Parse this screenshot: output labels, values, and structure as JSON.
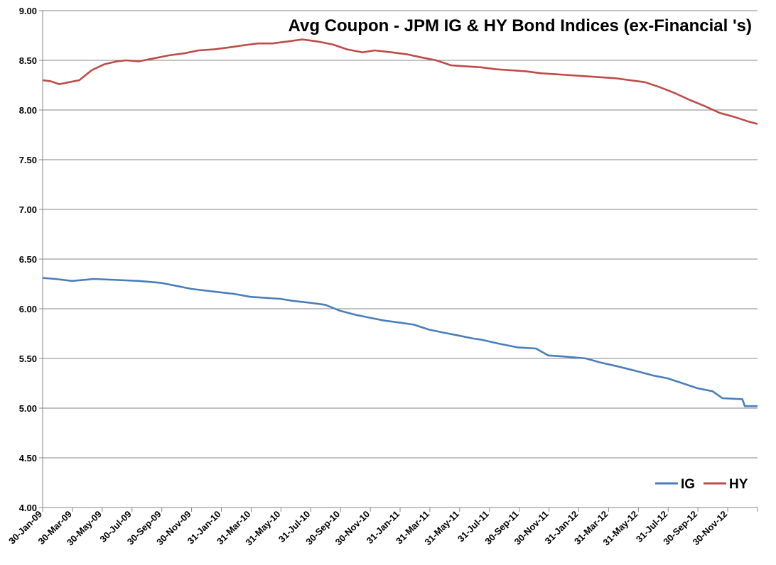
{
  "chart_data": {
    "type": "line",
    "title": "Avg Coupon - JPM IG & HY Bond Indices (ex-Financial 's)",
    "xlabel": "",
    "ylabel": "",
    "ylim": [
      4.0,
      9.0
    ],
    "y_ticks": [
      "4.00",
      "4.50",
      "5.00",
      "5.50",
      "6.00",
      "6.50",
      "7.00",
      "7.50",
      "8.00",
      "8.50",
      "9.00"
    ],
    "x_tick_labels": [
      "30-Jan-09",
      "30-Mar-09",
      "30-May-09",
      "30-Jul-09",
      "30-Sep-09",
      "30-Nov-09",
      "31-Jan-10",
      "31-Mar-10",
      "31-May-10",
      "31-Jul-10",
      "30-Sep-10",
      "30-Nov-10",
      "31-Jan-11",
      "31-Mar-11",
      "31-May-11",
      "31-Jul-11",
      "30-Sep-11",
      "30-Nov-11",
      "31-Jan-12",
      "31-Mar-12",
      "31-May-12",
      "31-Jul-12",
      "30-Sep-12",
      "30-Nov-12"
    ],
    "x_range": [
      "2009-01-30",
      "2013-01-31"
    ],
    "grid": "horizontal",
    "legend_position": "bottom-right",
    "series": [
      {
        "name": "IG",
        "color": "#4a7ebb",
        "points": [
          [
            "2009-01-30",
            6.31
          ],
          [
            "2009-02-25",
            6.3
          ],
          [
            "2009-03-31",
            6.28
          ],
          [
            "2009-05-15",
            6.3
          ],
          [
            "2009-08-15",
            6.28
          ],
          [
            "2009-09-30",
            6.26
          ],
          [
            "2009-10-31",
            6.23
          ],
          [
            "2009-11-30",
            6.2
          ],
          [
            "2010-01-20",
            6.17
          ],
          [
            "2010-02-25",
            6.15
          ],
          [
            "2010-03-31",
            6.12
          ],
          [
            "2010-04-30",
            6.11
          ],
          [
            "2010-05-31",
            6.1
          ],
          [
            "2010-06-25",
            6.08
          ],
          [
            "2010-07-31",
            6.06
          ],
          [
            "2010-08-31",
            6.04
          ],
          [
            "2010-09-30",
            5.98
          ],
          [
            "2010-10-31",
            5.94
          ],
          [
            "2010-11-30",
            5.91
          ],
          [
            "2010-12-31",
            5.88
          ],
          [
            "2011-01-31",
            5.86
          ],
          [
            "2011-02-28",
            5.84
          ],
          [
            "2011-03-31",
            5.79
          ],
          [
            "2011-04-30",
            5.76
          ],
          [
            "2011-05-31",
            5.73
          ],
          [
            "2011-06-30",
            5.7
          ],
          [
            "2011-07-15",
            5.69
          ],
          [
            "2011-08-20",
            5.65
          ],
          [
            "2011-09-30",
            5.61
          ],
          [
            "2011-11-05",
            5.6
          ],
          [
            "2011-11-30",
            5.53
          ],
          [
            "2011-12-31",
            5.52
          ],
          [
            "2012-02-15",
            5.5
          ],
          [
            "2012-03-15",
            5.46
          ],
          [
            "2012-04-20",
            5.42
          ],
          [
            "2012-05-31",
            5.37
          ],
          [
            "2012-06-30",
            5.33
          ],
          [
            "2012-07-31",
            5.3
          ],
          [
            "2012-08-31",
            5.25
          ],
          [
            "2012-09-30",
            5.2
          ],
          [
            "2012-10-31",
            5.17
          ],
          [
            "2012-11-20",
            5.1
          ],
          [
            "2012-12-31",
            5.09
          ],
          [
            "2013-01-05",
            5.02
          ],
          [
            "2013-01-31",
            5.02
          ]
        ]
      },
      {
        "name": "HY",
        "color": "#be4b48",
        "points": [
          [
            "2009-01-30",
            8.3
          ],
          [
            "2009-02-15",
            8.29
          ],
          [
            "2009-03-05",
            8.26
          ],
          [
            "2009-03-25",
            8.28
          ],
          [
            "2009-04-15",
            8.3
          ],
          [
            "2009-05-10",
            8.4
          ],
          [
            "2009-06-05",
            8.46
          ],
          [
            "2009-07-01",
            8.49
          ],
          [
            "2009-07-20",
            8.5
          ],
          [
            "2009-08-15",
            8.49
          ],
          [
            "2009-09-15",
            8.52
          ],
          [
            "2009-10-15",
            8.55
          ],
          [
            "2009-11-15",
            8.57
          ],
          [
            "2009-12-15",
            8.6
          ],
          [
            "2010-01-15",
            8.61
          ],
          [
            "2010-02-15",
            8.63
          ],
          [
            "2010-03-15",
            8.65
          ],
          [
            "2010-04-15",
            8.67
          ],
          [
            "2010-05-15",
            8.67
          ],
          [
            "2010-06-15",
            8.69
          ],
          [
            "2010-07-15",
            8.71
          ],
          [
            "2010-08-15",
            8.69
          ],
          [
            "2010-09-15",
            8.66
          ],
          [
            "2010-10-15",
            8.61
          ],
          [
            "2010-11-15",
            8.58
          ],
          [
            "2010-12-10",
            8.6
          ],
          [
            "2011-01-15",
            8.58
          ],
          [
            "2011-02-15",
            8.56
          ],
          [
            "2011-03-15",
            8.53
          ],
          [
            "2011-04-15",
            8.5
          ],
          [
            "2011-05-15",
            8.45
          ],
          [
            "2011-06-15",
            8.44
          ],
          [
            "2011-07-15",
            8.43
          ],
          [
            "2011-08-15",
            8.41
          ],
          [
            "2011-09-15",
            8.4
          ],
          [
            "2011-10-15",
            8.39
          ],
          [
            "2011-11-15",
            8.37
          ],
          [
            "2011-12-15",
            8.36
          ],
          [
            "2012-01-15",
            8.35
          ],
          [
            "2012-02-15",
            8.34
          ],
          [
            "2012-03-15",
            8.33
          ],
          [
            "2012-04-15",
            8.32
          ],
          [
            "2012-05-15",
            8.3
          ],
          [
            "2012-06-15",
            8.28
          ],
          [
            "2012-07-15",
            8.23
          ],
          [
            "2012-08-15",
            8.17
          ],
          [
            "2012-09-15",
            8.1
          ],
          [
            "2012-10-15",
            8.04
          ],
          [
            "2012-11-15",
            7.97
          ],
          [
            "2012-12-15",
            7.93
          ],
          [
            "2013-01-15",
            7.88
          ],
          [
            "2013-01-31",
            7.86
          ]
        ]
      }
    ]
  }
}
